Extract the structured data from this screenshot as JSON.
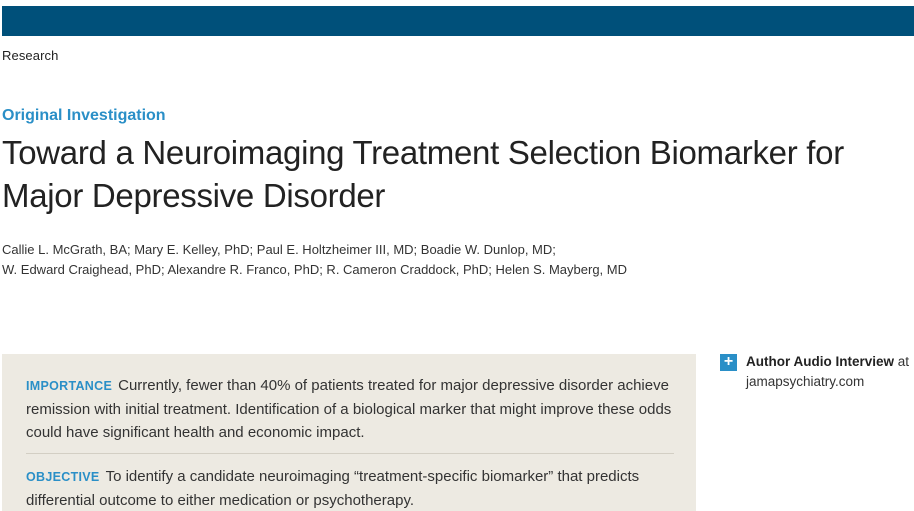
{
  "header": {
    "section": "Research"
  },
  "article": {
    "type": "Original Investigation",
    "title": "Toward a Neuroimaging Treatment Selection Biomarker for Major Depressive Disorder",
    "authors_line1": "Callie L. McGrath, BA; Mary E. Kelley, PhD; Paul E. Holtzheimer III, MD; Boadie W. Dunlop, MD;",
    "authors_line2": "W. Edward Craighead, PhD; Alexandre R. Franco, PhD; R. Cameron Craddock, PhD; Helen S. Mayberg, MD"
  },
  "abstract": {
    "importance_heading": "IMPORTANCE",
    "importance_text": "Currently, fewer than 40% of patients treated for major depressive disorder achieve remission with initial treatment. Identification of a biological marker that might improve these odds could have significant health and economic impact.",
    "objective_heading": "OBJECTIVE",
    "objective_text": "To identify a candidate neuroimaging “treatment-specific biomarker” that predicts differential outcome to either medication or psychotherapy."
  },
  "sidebar": {
    "icon": "plus-icon",
    "link_bold": "Author Audio Interview",
    "link_suffix": " at",
    "link_site": "jamapsychiatry.com"
  },
  "colors": {
    "header_bar": "#00507a",
    "accent": "#2a8fc7",
    "abstract_bg": "#edeae2"
  }
}
